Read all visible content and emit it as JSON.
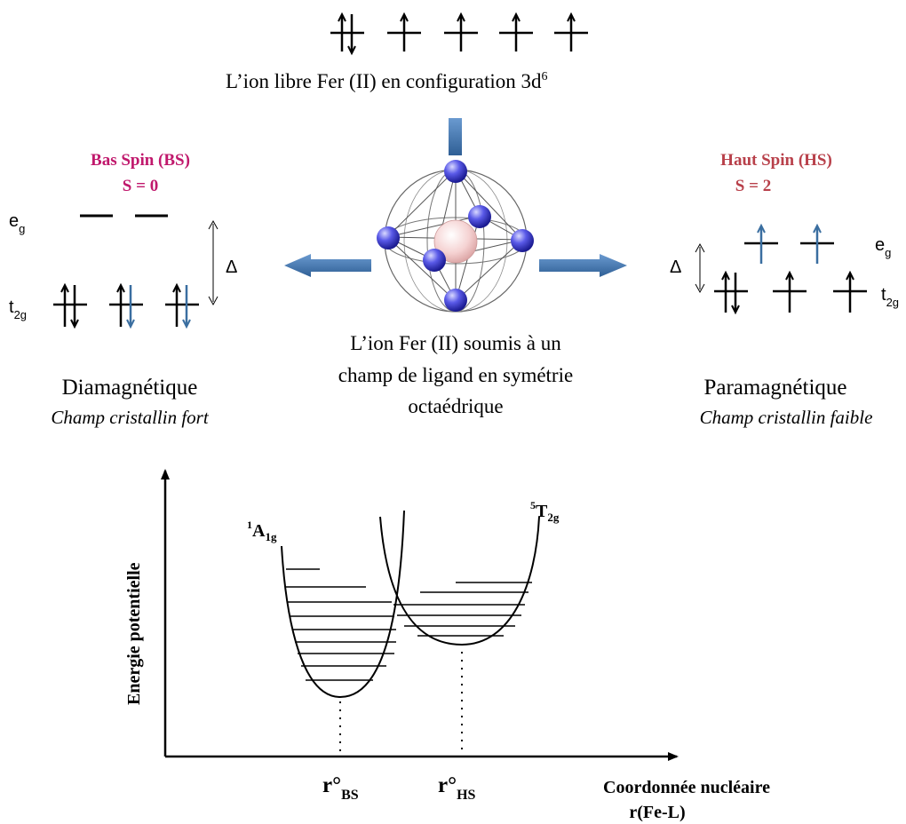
{
  "free_ion": {
    "label": "L’ion libre Fer (II) en configuration 3d",
    "superscript": "6"
  },
  "center": {
    "line1": "L’ion Fer (II) soumis à un",
    "line2": "champ de ligand  en symétrie",
    "line3": "octaédrique"
  },
  "low_spin": {
    "title": "Bas Spin (BS)",
    "spin": "S = 0",
    "magnetism": "Diamagnétique",
    "field": "Champ cristallin fort",
    "eg": "e",
    "eg_sub": "g",
    "t2g": "t",
    "t2g_sub": "2g",
    "delta": "Δ",
    "color": "#c0186c"
  },
  "high_spin": {
    "title": "Haut Spin (HS)",
    "spin": "S = 2",
    "magnetism": "Paramagnétique",
    "field": "Champ cristallin faible",
    "eg": "e",
    "eg_sub": "g",
    "t2g": "t",
    "t2g_sub": "2g",
    "delta": "Δ",
    "color": "#b8404a"
  },
  "potential": {
    "ylabel": "Energie potentielle",
    "xlabel_line1": "Coordonnée nucléaire",
    "xlabel_line2": "r(Fe-L)",
    "bs_state_pre": "1",
    "bs_state_main": "A",
    "bs_state_sub": "1g",
    "hs_state_pre": "5",
    "hs_state_main": "T",
    "hs_state_sub": "2g",
    "r_bs_main": "r°",
    "r_bs_sub": "BS",
    "r_hs_main": "r°",
    "r_hs_sub": "HS"
  },
  "colors": {
    "arrow_fill": "#4a7db5",
    "sphere_blue": "#4444dd",
    "center_sphere": "#f2c8c8",
    "blue_electron": "#3a6ea0"
  }
}
